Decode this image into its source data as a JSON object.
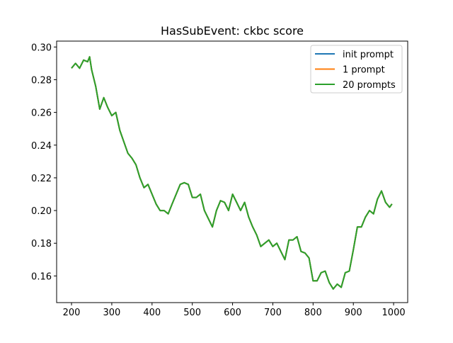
{
  "chart_data": {
    "type": "line",
    "title": "HasSubEvent: ckbc score",
    "xlabel": "",
    "ylabel": "",
    "xlim": [
      163,
      1035
    ],
    "ylim": [
      0.1437,
      0.3036
    ],
    "xticks": [
      200,
      300,
      400,
      500,
      600,
      700,
      800,
      900,
      1000
    ],
    "yticks": [
      0.16,
      0.18,
      0.2,
      0.22,
      0.24,
      0.26,
      0.28,
      0.3
    ],
    "xtick_labels": [
      "200",
      "300",
      "400",
      "500",
      "600",
      "700",
      "800",
      "900",
      "1000"
    ],
    "ytick_labels": [
      "0.16",
      "0.18",
      "0.20",
      "0.22",
      "0.24",
      "0.26",
      "0.28",
      "0.30"
    ],
    "grid": false,
    "legend_position": "top-right",
    "series": [
      {
        "name": "init prompt",
        "color": "#1f77b4",
        "x": [
          200,
          210,
          220,
          230,
          240,
          245,
          250,
          260,
          270,
          280,
          290,
          300,
          310,
          320,
          330,
          340,
          350,
          360,
          370,
          380,
          390,
          400,
          410,
          420,
          430,
          440,
          450,
          460,
          470,
          480,
          490,
          500,
          510,
          520,
          530,
          540,
          550,
          560,
          570,
          580,
          590,
          600,
          610,
          620,
          630,
          640,
          650,
          660,
          670,
          680,
          690,
          700,
          710,
          720,
          730,
          740,
          750,
          760,
          770,
          780,
          790,
          800,
          810,
          820,
          830,
          840,
          850,
          860,
          870,
          880,
          890,
          900,
          910,
          920,
          930,
          940,
          950,
          960,
          970,
          980,
          990,
          996
        ],
        "values": [
          0.287,
          0.29,
          0.287,
          0.292,
          0.291,
          0.294,
          0.286,
          0.276,
          0.262,
          0.269,
          0.263,
          0.258,
          0.26,
          0.249,
          0.242,
          0.235,
          0.232,
          0.228,
          0.22,
          0.214,
          0.216,
          0.21,
          0.204,
          0.2,
          0.2,
          0.198,
          0.204,
          0.21,
          0.216,
          0.217,
          0.216,
          0.208,
          0.208,
          0.21,
          0.2,
          0.195,
          0.19,
          0.2,
          0.206,
          0.205,
          0.2,
          0.21,
          0.205,
          0.2,
          0.205,
          0.196,
          0.19,
          0.185,
          0.178,
          0.18,
          0.182,
          0.178,
          0.18,
          0.175,
          0.17,
          0.182,
          0.182,
          0.184,
          0.175,
          0.174,
          0.171,
          0.157,
          0.157,
          0.162,
          0.163,
          0.156,
          0.152,
          0.155,
          0.153,
          0.162,
          0.163,
          0.176,
          0.19,
          0.19,
          0.196,
          0.2,
          0.198,
          0.207,
          0.212,
          0.205,
          0.202,
          0.204
        ]
      },
      {
        "name": "1 prompt",
        "color": "#ff7f0e",
        "x": [
          200,
          210,
          220,
          230,
          240,
          245,
          250,
          260,
          270,
          280,
          290,
          300,
          310,
          320,
          330,
          340,
          350,
          360,
          370,
          380,
          390,
          400,
          410,
          420,
          430,
          440,
          450,
          460,
          470,
          480,
          490,
          500,
          510,
          520,
          530,
          540,
          550,
          560,
          570,
          580,
          590,
          600,
          610,
          620,
          630,
          640,
          650,
          660,
          670,
          680,
          690,
          700,
          710,
          720,
          730,
          740,
          750,
          760,
          770,
          780,
          790,
          800,
          810,
          820,
          830,
          840,
          850,
          860,
          870,
          880,
          890,
          900,
          910,
          920,
          930,
          940,
          950,
          960,
          970,
          980,
          990,
          996
        ],
        "values": [
          0.287,
          0.29,
          0.287,
          0.292,
          0.291,
          0.294,
          0.286,
          0.276,
          0.262,
          0.269,
          0.263,
          0.258,
          0.26,
          0.249,
          0.242,
          0.235,
          0.232,
          0.228,
          0.22,
          0.214,
          0.216,
          0.21,
          0.204,
          0.2,
          0.2,
          0.198,
          0.204,
          0.21,
          0.216,
          0.217,
          0.216,
          0.208,
          0.208,
          0.21,
          0.2,
          0.195,
          0.19,
          0.2,
          0.206,
          0.205,
          0.2,
          0.21,
          0.205,
          0.2,
          0.205,
          0.196,
          0.19,
          0.185,
          0.178,
          0.18,
          0.182,
          0.178,
          0.18,
          0.175,
          0.17,
          0.182,
          0.182,
          0.184,
          0.175,
          0.174,
          0.171,
          0.157,
          0.157,
          0.162,
          0.163,
          0.156,
          0.152,
          0.155,
          0.153,
          0.162,
          0.163,
          0.176,
          0.19,
          0.19,
          0.196,
          0.2,
          0.198,
          0.207,
          0.212,
          0.205,
          0.202,
          0.204
        ]
      },
      {
        "name": "20 prompts",
        "color": "#2ca02c",
        "x": [
          200,
          210,
          220,
          230,
          240,
          245,
          250,
          260,
          270,
          280,
          290,
          300,
          310,
          320,
          330,
          340,
          350,
          360,
          370,
          380,
          390,
          400,
          410,
          420,
          430,
          440,
          450,
          460,
          470,
          480,
          490,
          500,
          510,
          520,
          530,
          540,
          550,
          560,
          570,
          580,
          590,
          600,
          610,
          620,
          630,
          640,
          650,
          660,
          670,
          680,
          690,
          700,
          710,
          720,
          730,
          740,
          750,
          760,
          770,
          780,
          790,
          800,
          810,
          820,
          830,
          840,
          850,
          860,
          870,
          880,
          890,
          900,
          910,
          920,
          930,
          940,
          950,
          960,
          970,
          980,
          990,
          996
        ],
        "values": [
          0.287,
          0.29,
          0.287,
          0.292,
          0.291,
          0.294,
          0.286,
          0.276,
          0.262,
          0.269,
          0.263,
          0.258,
          0.26,
          0.249,
          0.242,
          0.235,
          0.232,
          0.228,
          0.22,
          0.214,
          0.216,
          0.21,
          0.204,
          0.2,
          0.2,
          0.198,
          0.204,
          0.21,
          0.216,
          0.217,
          0.216,
          0.208,
          0.208,
          0.21,
          0.2,
          0.195,
          0.19,
          0.2,
          0.206,
          0.205,
          0.2,
          0.21,
          0.205,
          0.2,
          0.205,
          0.196,
          0.19,
          0.185,
          0.178,
          0.18,
          0.182,
          0.178,
          0.18,
          0.175,
          0.17,
          0.182,
          0.182,
          0.184,
          0.175,
          0.174,
          0.171,
          0.157,
          0.157,
          0.162,
          0.163,
          0.156,
          0.152,
          0.155,
          0.153,
          0.162,
          0.163,
          0.176,
          0.19,
          0.19,
          0.196,
          0.2,
          0.198,
          0.207,
          0.212,
          0.205,
          0.202,
          0.204
        ]
      }
    ]
  }
}
